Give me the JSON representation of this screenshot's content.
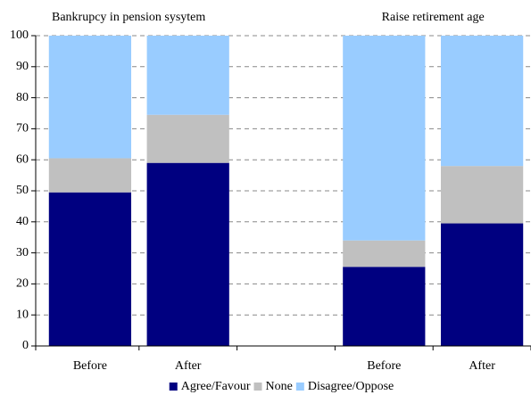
{
  "chart_data": {
    "type": "stacked_bar",
    "annotations": [
      "Bankrupcy in pension sysytem",
      "Raise retirement age"
    ],
    "categories": [
      "Before",
      "After",
      null,
      "Before",
      "After"
    ],
    "series": [
      {
        "name": "Agree/Favour",
        "color": "#000080",
        "values": [
          49.5,
          59,
          null,
          25.5,
          39.5
        ]
      },
      {
        "name": "None",
        "color": "#c0c0c0",
        "values": [
          11,
          15.5,
          null,
          8.5,
          18.5
        ]
      },
      {
        "name": "Disagree/Oppose",
        "color": "#99ccff",
        "values": [
          39.5,
          25.5,
          null,
          66,
          42
        ]
      }
    ],
    "ylim": [
      0,
      100
    ],
    "yticks": [
      0,
      10,
      20,
      30,
      40,
      50,
      60,
      70,
      80,
      90,
      100
    ],
    "grid": true,
    "legend": "bottom"
  }
}
